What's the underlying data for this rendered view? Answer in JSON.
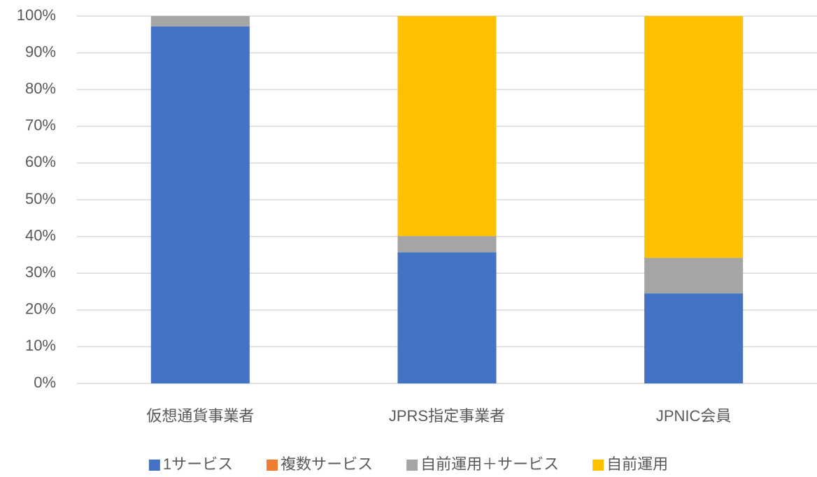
{
  "chart_data": {
    "type": "stacked_bar",
    "categories": [
      "仮想通貨事業者",
      "JPRS指定事業者",
      "JPNIC会員"
    ],
    "series": [
      {
        "name": "1サービス",
        "color": "#4472c4",
        "values": [
          97.2,
          35.7,
          24.5
        ]
      },
      {
        "name": "複数サービス",
        "color": "#ed7d31",
        "values": [
          0,
          0,
          0
        ]
      },
      {
        "name": "自前運用＋サービス",
        "color": "#a5a5a5",
        "values": [
          2.8,
          4.4,
          9.7
        ]
      },
      {
        "name": "自前運用",
        "color": "#ffc000",
        "values": [
          0,
          59.9,
          65.8
        ]
      }
    ],
    "ylim": [
      0,
      100
    ],
    "yticks": [
      {
        "value": 0,
        "label": "0%"
      },
      {
        "value": 10,
        "label": "10%"
      },
      {
        "value": 20,
        "label": "20%"
      },
      {
        "value": 30,
        "label": "30%"
      },
      {
        "value": 40,
        "label": "40%"
      },
      {
        "value": 50,
        "label": "50%"
      },
      {
        "value": 60,
        "label": "60%"
      },
      {
        "value": 70,
        "label": "70%"
      },
      {
        "value": 80,
        "label": "80%"
      },
      {
        "value": 90,
        "label": "90%"
      },
      {
        "value": 100,
        "label": "100%"
      }
    ],
    "grid": true,
    "legend": "bottom"
  }
}
